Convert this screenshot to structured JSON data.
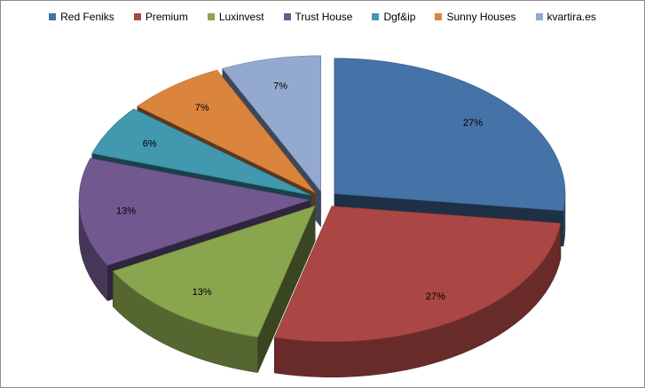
{
  "chart_data": {
    "type": "pie",
    "style": "3d-exploded",
    "legend_position": "top",
    "categories": [
      "Red Feniks",
      "Premium",
      "Luxinvest",
      "Trust House",
      "Dgf&ip",
      "Sunny Houses",
      "kvartira.es"
    ],
    "values": [
      27,
      27,
      13,
      13,
      6,
      7,
      7
    ],
    "data_labels": [
      "27%",
      "27%",
      "13%",
      "13%",
      "6%",
      "7%",
      "7%"
    ],
    "colors": [
      "#4572a7",
      "#aa4643",
      "#89a54e",
      "#71588f",
      "#4198af",
      "#db843d",
      "#93a9cf"
    ]
  }
}
